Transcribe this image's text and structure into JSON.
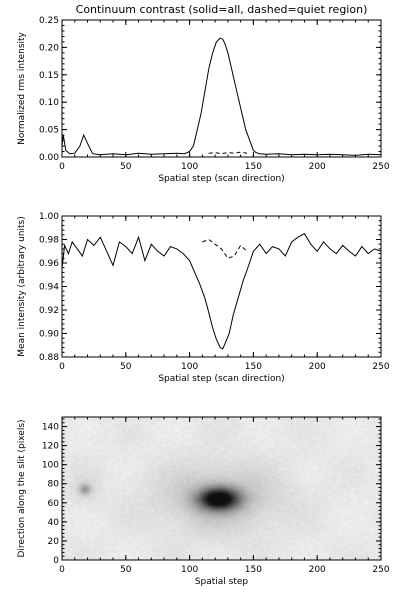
{
  "chart_data": [
    {
      "type": "line",
      "title": "Continuum contrast (solid=all, dashed=quiet region)",
      "xlabel": "Spatial step (scan direction)",
      "ylabel": "Normalized rms intensity",
      "xlim": [
        0,
        250
      ],
      "ylim": [
        0,
        0.25
      ],
      "xticks": [
        "0",
        "50",
        "100",
        "150",
        "200",
        "250"
      ],
      "yticks": [
        "0.00",
        "0.05",
        "0.10",
        "0.15",
        "0.20",
        "0.25"
      ],
      "series": [
        {
          "style": "solid",
          "x": [
            0,
            1,
            3,
            6,
            10,
            14,
            17,
            20,
            24,
            30,
            40,
            50,
            60,
            70,
            80,
            90,
            96,
            100,
            103,
            106,
            109,
            112,
            115,
            118,
            121,
            124,
            126,
            128,
            130,
            133,
            136,
            140,
            144,
            148,
            150,
            152,
            155,
            160,
            170,
            180,
            190,
            200,
            210,
            220,
            230,
            240,
            250
          ],
          "y": [
            0.02,
            0.04,
            0.012,
            0.006,
            0.007,
            0.02,
            0.04,
            0.025,
            0.006,
            0.004,
            0.006,
            0.004,
            0.007,
            0.005,
            0.006,
            0.007,
            0.006,
            0.01,
            0.02,
            0.05,
            0.08,
            0.12,
            0.16,
            0.19,
            0.21,
            0.217,
            0.215,
            0.205,
            0.19,
            0.16,
            0.13,
            0.09,
            0.05,
            0.025,
            0.012,
            0.008,
            0.006,
            0.005,
            0.006,
            0.004,
            0.005,
            0.004,
            0.005,
            0.004,
            0.003,
            0.005,
            0.004
          ]
        },
        {
          "style": "dashed",
          "x": [
            115,
            120,
            125,
            130,
            135,
            140,
            145
          ],
          "y": [
            0.007,
            0.008,
            0.006,
            0.008,
            0.007,
            0.009,
            0.007
          ]
        }
      ]
    },
    {
      "type": "line",
      "xlabel": "Spatial step (scan direction)",
      "ylabel": "Mean intensity (arbitrary units)",
      "xlim": [
        0,
        250
      ],
      "ylim": [
        0.88,
        1.0
      ],
      "xticks": [
        "0",
        "50",
        "100",
        "150",
        "200",
        "250"
      ],
      "yticks": [
        "0.88",
        "0.90",
        "0.92",
        "0.94",
        "0.96",
        "0.98",
        "1.00"
      ],
      "series": [
        {
          "style": "solid",
          "x": [
            0,
            2,
            5,
            8,
            12,
            16,
            20,
            25,
            30,
            35,
            40,
            45,
            50,
            55,
            60,
            65,
            70,
            75,
            80,
            85,
            90,
            95,
            100,
            104,
            108,
            112,
            115,
            118,
            121,
            124,
            126,
            128,
            131,
            134,
            138,
            142,
            146,
            150,
            155,
            160,
            165,
            170,
            175,
            180,
            185,
            190,
            195,
            200,
            205,
            210,
            215,
            220,
            225,
            230,
            235,
            240,
            245,
            250
          ],
          "y": [
            0.955,
            0.975,
            0.968,
            0.978,
            0.972,
            0.966,
            0.98,
            0.975,
            0.982,
            0.97,
            0.958,
            0.978,
            0.974,
            0.968,
            0.982,
            0.962,
            0.976,
            0.97,
            0.966,
            0.974,
            0.972,
            0.968,
            0.962,
            0.952,
            0.942,
            0.93,
            0.918,
            0.905,
            0.895,
            0.888,
            0.887,
            0.892,
            0.9,
            0.915,
            0.93,
            0.945,
            0.957,
            0.97,
            0.976,
            0.968,
            0.974,
            0.972,
            0.966,
            0.978,
            0.982,
            0.985,
            0.976,
            0.97,
            0.978,
            0.972,
            0.968,
            0.975,
            0.97,
            0.966,
            0.974,
            0.968,
            0.972,
            0.97
          ]
        },
        {
          "style": "dashed",
          "x": [
            110,
            115,
            120,
            125,
            130,
            135,
            140,
            145
          ],
          "y": [
            0.978,
            0.98,
            0.976,
            0.972,
            0.964,
            0.966,
            0.975,
            0.97
          ]
        }
      ]
    },
    {
      "type": "heatmap",
      "xlabel": "Spatial step",
      "ylabel": "Direction along the slit (pixels)",
      "xlim": [
        0,
        250
      ],
      "ylim": [
        0,
        150
      ],
      "xticks": [
        "0",
        "50",
        "100",
        "150",
        "200",
        "250"
      ],
      "yticks": [
        "0",
        "20",
        "40",
        "60",
        "80",
        "100",
        "120",
        "140"
      ],
      "colormap": "inverted grayscale",
      "features": [
        {
          "kind": "dark spot",
          "x": 123,
          "y": 64,
          "sx": 11,
          "sy": 8,
          "peak": 1.0
        },
        {
          "kind": "faint spot",
          "x": 18,
          "y": 74,
          "sx": 3,
          "sy": 4,
          "peak": 0.3
        }
      ]
    }
  ]
}
